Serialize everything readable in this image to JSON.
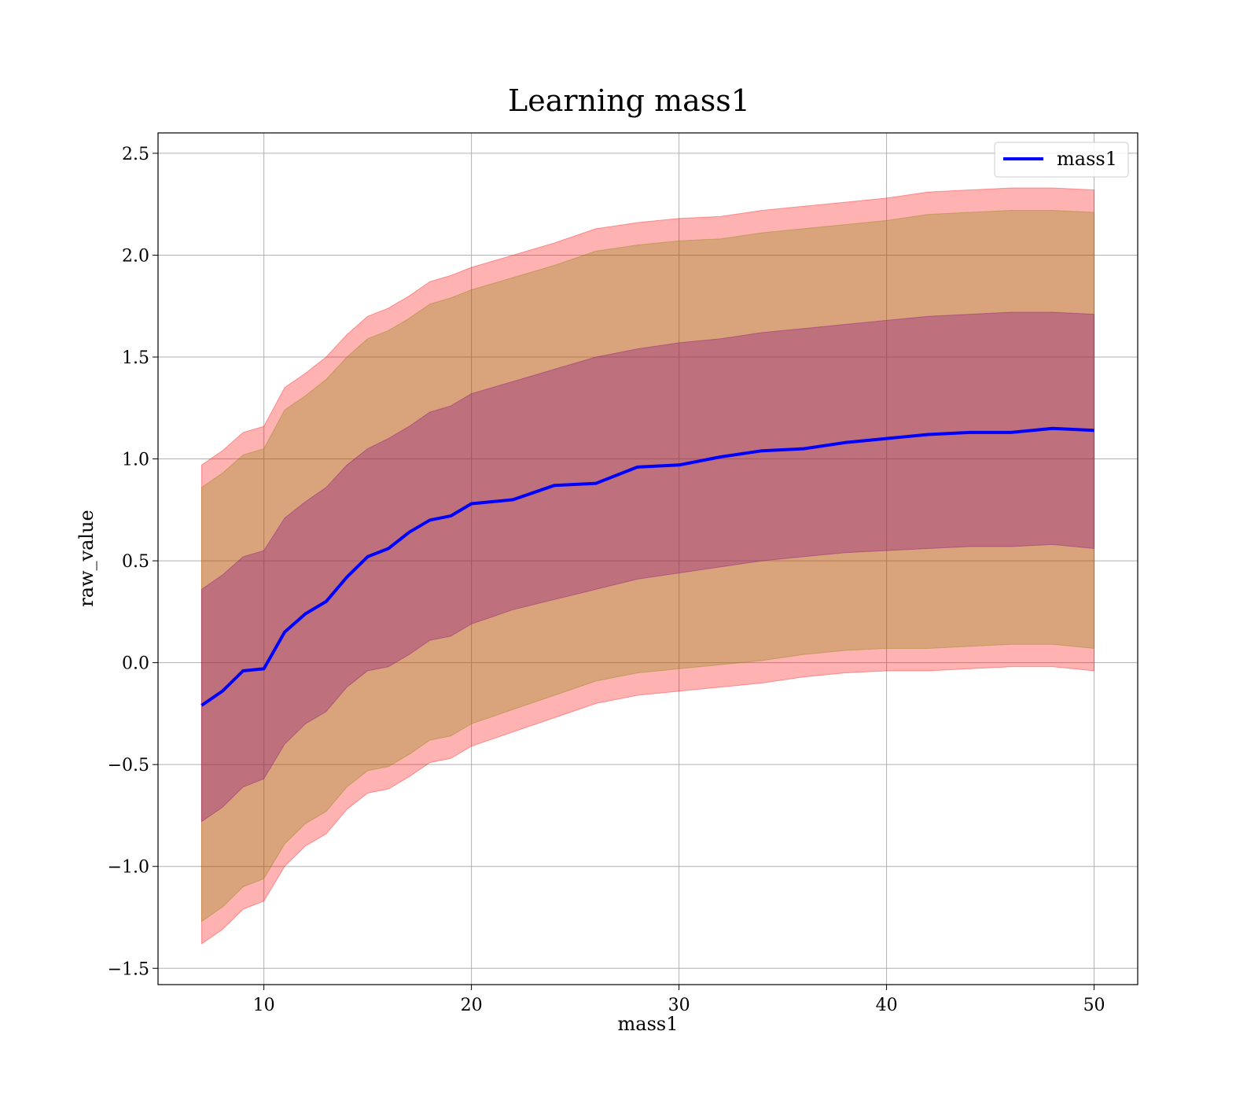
{
  "chart_data": {
    "type": "line",
    "title": "Learning mass1",
    "xlabel": "mass1",
    "ylabel": "raw_value",
    "xlim": [
      4.9,
      52.1
    ],
    "ylim": [
      -1.58,
      2.6
    ],
    "xticks": [
      10,
      20,
      30,
      40,
      50
    ],
    "xtick_labels": [
      "10",
      "20",
      "30",
      "40",
      "50"
    ],
    "yticks": [
      -1.5,
      -1.0,
      -0.5,
      0.0,
      0.5,
      1.0,
      1.5,
      2.0,
      2.5
    ],
    "ytick_labels": [
      "−1.5",
      "−1.0",
      "−0.5",
      "0.0",
      "0.5",
      "1.0",
      "1.5",
      "2.0",
      "2.5"
    ],
    "grid": true,
    "legend_position": "top-right",
    "colors": {
      "line": "#0000ff",
      "band_outer": "#ff0000",
      "band_middle": "#808000",
      "band_inner": "#800080",
      "grid": "#b0b0b0"
    },
    "x": [
      7,
      8,
      9,
      10,
      11,
      12,
      13,
      14,
      15,
      16,
      17,
      18,
      19,
      20,
      22,
      24,
      26,
      28,
      30,
      32,
      34,
      36,
      38,
      40,
      42,
      44,
      46,
      48,
      50
    ],
    "series": [
      {
        "name": "mass1",
        "role": "mean",
        "values": [
          -0.21,
          -0.14,
          -0.04,
          -0.03,
          0.15,
          0.24,
          0.3,
          0.42,
          0.52,
          0.56,
          0.64,
          0.7,
          0.72,
          0.78,
          0.8,
          0.87,
          0.88,
          0.96,
          0.97,
          1.01,
          1.04,
          1.05,
          1.08,
          1.1,
          1.12,
          1.13,
          1.13,
          1.15,
          1.14
        ]
      },
      {
        "role": "band_outer",
        "lower": [
          -1.38,
          -1.31,
          -1.21,
          -1.17,
          -1.0,
          -0.9,
          -0.84,
          -0.72,
          -0.64,
          -0.62,
          -0.56,
          -0.49,
          -0.47,
          -0.41,
          -0.34,
          -0.27,
          -0.2,
          -0.16,
          -0.14,
          -0.12,
          -0.1,
          -0.07,
          -0.05,
          -0.04,
          -0.04,
          -0.03,
          -0.02,
          -0.02,
          -0.04
        ],
        "upper": [
          0.97,
          1.04,
          1.13,
          1.16,
          1.35,
          1.42,
          1.5,
          1.61,
          1.7,
          1.74,
          1.8,
          1.87,
          1.9,
          1.94,
          2.0,
          2.06,
          2.13,
          2.16,
          2.18,
          2.19,
          2.22,
          2.24,
          2.26,
          2.28,
          2.31,
          2.32,
          2.33,
          2.33,
          2.32
        ]
      },
      {
        "role": "band_middle",
        "lower": [
          -1.27,
          -1.2,
          -1.1,
          -1.06,
          -0.89,
          -0.79,
          -0.73,
          -0.61,
          -0.53,
          -0.51,
          -0.45,
          -0.38,
          -0.36,
          -0.3,
          -0.23,
          -0.16,
          -0.09,
          -0.05,
          -0.03,
          -0.01,
          0.01,
          0.04,
          0.06,
          0.07,
          0.07,
          0.08,
          0.09,
          0.09,
          0.07
        ],
        "upper": [
          0.86,
          0.93,
          1.02,
          1.05,
          1.24,
          1.31,
          1.39,
          1.5,
          1.59,
          1.63,
          1.69,
          1.76,
          1.79,
          1.83,
          1.89,
          1.95,
          2.02,
          2.05,
          2.07,
          2.08,
          2.11,
          2.13,
          2.15,
          2.17,
          2.2,
          2.21,
          2.22,
          2.22,
          2.21
        ]
      },
      {
        "role": "band_inner",
        "lower": [
          -0.78,
          -0.71,
          -0.61,
          -0.57,
          -0.4,
          -0.3,
          -0.24,
          -0.12,
          -0.04,
          -0.02,
          0.04,
          0.11,
          0.13,
          0.19,
          0.26,
          0.31,
          0.36,
          0.41,
          0.44,
          0.47,
          0.5,
          0.52,
          0.54,
          0.55,
          0.56,
          0.57,
          0.57,
          0.58,
          0.56
        ],
        "upper": [
          0.36,
          0.43,
          0.52,
          0.55,
          0.71,
          0.79,
          0.86,
          0.97,
          1.05,
          1.1,
          1.16,
          1.23,
          1.26,
          1.32,
          1.38,
          1.44,
          1.5,
          1.54,
          1.57,
          1.59,
          1.62,
          1.64,
          1.66,
          1.68,
          1.7,
          1.71,
          1.72,
          1.72,
          1.71
        ]
      }
    ]
  }
}
